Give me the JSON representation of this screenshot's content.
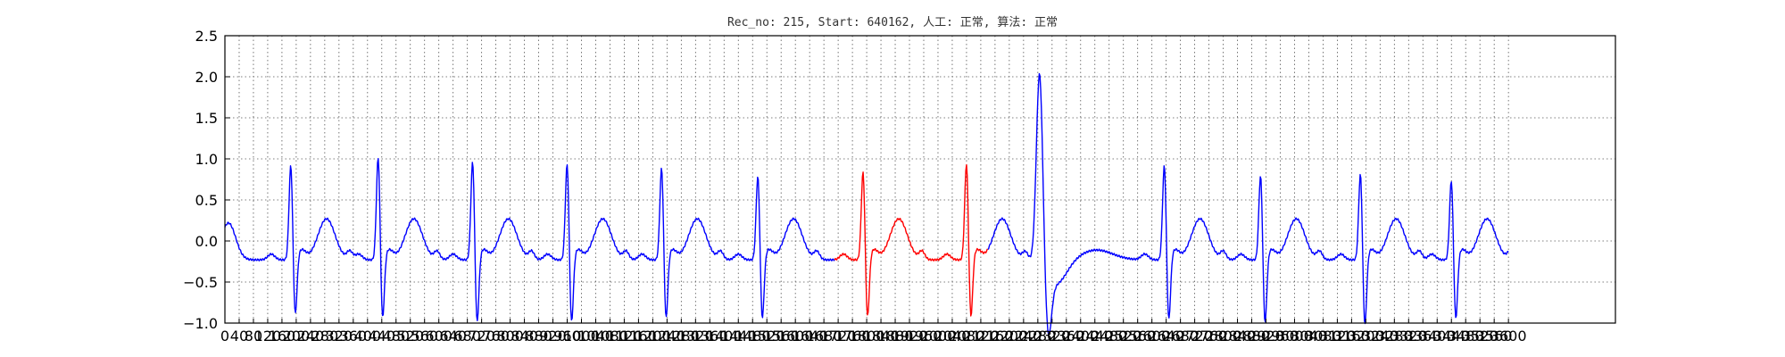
{
  "chart_data": {
    "type": "line",
    "title": "Rec_no: 215, Start: 640162, 人工: 正常, 算法: 正常",
    "xlabel": "",
    "ylabel": "",
    "xlim": [
      0,
      3900
    ],
    "ylim": [
      -1.0,
      2.5
    ],
    "grid": true,
    "yticks": [
      {
        "value": -1.0,
        "label": "−1.0"
      },
      {
        "value": -0.5,
        "label": "−0.5"
      },
      {
        "value": 0.0,
        "label": "0.0"
      },
      {
        "value": 0.5,
        "label": "0.5"
      },
      {
        "value": 1.0,
        "label": "1.0"
      },
      {
        "value": 1.5,
        "label": "1.5"
      },
      {
        "value": 2.0,
        "label": "2.0"
      },
      {
        "value": 2.5,
        "label": "2.5"
      }
    ],
    "xticks": [
      0,
      40,
      80,
      120,
      160,
      200,
      240,
      280,
      320,
      360,
      400,
      440,
      480,
      520,
      560,
      600,
      640,
      680,
      720,
      760,
      800,
      840,
      880,
      920,
      960,
      1000,
      1040,
      1080,
      1120,
      1160,
      1200,
      1240,
      1280,
      1320,
      1360,
      1400,
      1440,
      1480,
      1520,
      1560,
      1600,
      1640,
      1680,
      1720,
      1760,
      1800,
      1840,
      1880,
      1920,
      1960,
      2000,
      2040,
      2080,
      2120,
      2160,
      2200,
      2240,
      2280,
      2320,
      2360,
      2400,
      2440,
      2480,
      2520,
      2560,
      2600,
      2640,
      2680,
      2720,
      2760,
      2800,
      2840,
      2880,
      2920,
      2960,
      3000,
      3040,
      3080,
      3120,
      3160,
      3200,
      3240,
      3280,
      3320,
      3360,
      3400,
      3440,
      3480,
      3520,
      3560,
      3600
    ],
    "series": [
      {
        "color": "#0000ff",
        "x_range": [
          0,
          1710
        ]
      },
      {
        "color": "#ff0000",
        "x_range": [
          1710,
          2140
        ]
      },
      {
        "color": "#0000ff",
        "x_range": [
          2140,
          3600
        ]
      }
    ],
    "beats": [
      {
        "r": 185,
        "amp": 0.95,
        "q": -0.85
      },
      {
        "r": 430,
        "amp": 1.05,
        "q": -0.9
      },
      {
        "r": 695,
        "amp": 1.0,
        "q": -0.95
      },
      {
        "r": 960,
        "amp": 0.97,
        "q": -0.95
      },
      {
        "r": 1225,
        "amp": 0.92,
        "q": -0.9
      },
      {
        "r": 1495,
        "amp": 0.82,
        "q": -0.9
      },
      {
        "r": 1790,
        "amp": 0.87,
        "q": -0.88
      },
      {
        "r": 2080,
        "amp": 0.97,
        "q": -0.88
      },
      {
        "r": 2285,
        "amp": 2.18,
        "q": -0.92,
        "pvc": true
      },
      {
        "r": 2635,
        "amp": 0.95,
        "q": -0.92
      },
      {
        "r": 2905,
        "amp": 0.83,
        "q": -0.95
      },
      {
        "r": 3185,
        "amp": 0.85,
        "q": -0.98
      },
      {
        "r": 3440,
        "amp": 0.77,
        "q": -0.9
      }
    ]
  }
}
